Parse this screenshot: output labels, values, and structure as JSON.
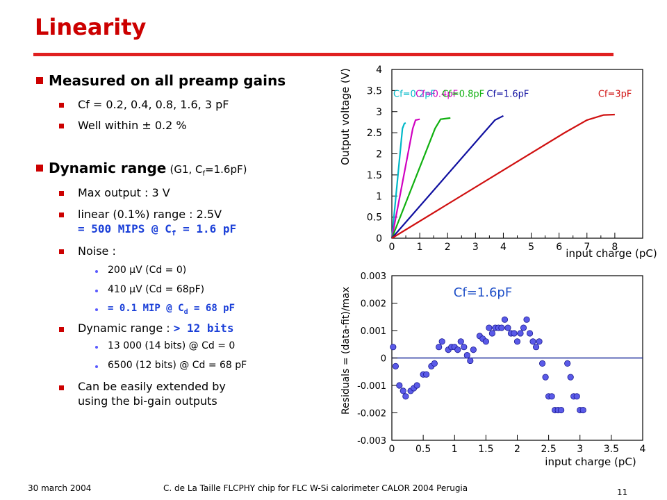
{
  "slide": {
    "title": "Linearity",
    "bullets": {
      "b1": "Measured on all preamp gains",
      "b1_1": "Cf = 0.2, 0.4, 0.8, 1.6, 3 pF",
      "b1_2": "Well within ± 0.2 %",
      "b2_main": "Dynamic range",
      "b2_note_pre": "(G1, C",
      "b2_note_sub": "f",
      "b2_note_post": "=1.6pF)",
      "b2_1": "Max output : 3 V",
      "b2_2": "linear (0.1%) range : 2.5V",
      "b2_2b_pre": "= 500 MIPS @ C",
      "b2_2b_sub": "f",
      "b2_2b_post": " = 1.6 pF",
      "b2_3": "Noise :",
      "n1": "200 µV  (Cd = 0)",
      "n2": "410 µV  (Cd = 68pF)",
      "n3_pre": "= 0.1 MIP @ C",
      "n3_sub": "d",
      "n3_post": " = 68 pF",
      "b2_4_pre": "Dynamic range :",
      "b2_4_hl": "> 12 bits",
      "d1": "13 000  (14 bits)  @ Cd = 0",
      "d2": "6500  (12 bits)   @ Cd = 68 pF",
      "b2_5a": "Can be easily extended by",
      "b2_5b": "using the bi-gain outputs"
    },
    "footer": {
      "date": "30 march 2004",
      "center": "C. de La Taille    FLCPHY chip for FLC W-Si calorimeter    CALOR 2004  Perugia",
      "page": "11"
    },
    "colors": {
      "title": "#cc0000",
      "highlight": "#1a3fd8",
      "bullet": "#cc0000"
    }
  },
  "chart_data": [
    {
      "type": "line",
      "xlabel": "input charge (pC)",
      "ylabel": "Output voltage (V)",
      "xlim": [
        0,
        9
      ],
      "ylim": [
        0,
        4
      ],
      "xticks": [
        "0",
        "1",
        "2",
        "3",
        "4",
        "5",
        "6",
        "7",
        "8"
      ],
      "yticks": [
        "0",
        "0.5",
        "1",
        "1.5",
        "2",
        "2.5",
        "3",
        "3.5",
        "4"
      ],
      "series": [
        {
          "name": "Cf=0.2pF",
          "color": "#00b8c8",
          "x": [
            0,
            0.38,
            0.45,
            0.5
          ],
          "y": [
            0,
            2.6,
            2.72,
            2.73
          ]
        },
        {
          "name": "Cf=0.4pF",
          "color": "#d000c0",
          "x": [
            0,
            0.75,
            0.85,
            1.0
          ],
          "y": [
            0,
            2.6,
            2.8,
            2.82
          ]
        },
        {
          "name": "Cf=0.8pF",
          "color": "#10b010",
          "x": [
            0,
            1.55,
            1.75,
            2.1
          ],
          "y": [
            0,
            2.6,
            2.82,
            2.85
          ]
        },
        {
          "name": "Cf=1.6pF",
          "color": "#1010a0",
          "x": [
            0,
            3.3,
            3.7,
            4.0
          ],
          "y": [
            0,
            2.5,
            2.8,
            2.9
          ]
        },
        {
          "name": "Cf=3pF",
          "color": "#d01010",
          "x": [
            0,
            6.2,
            7.0,
            7.6,
            8.0
          ],
          "y": [
            0,
            2.5,
            2.8,
            2.92,
            2.93
          ]
        }
      ]
    },
    {
      "type": "scatter",
      "title": "Cf=1.6pF",
      "xlabel": "input charge (pC)",
      "ylabel": "Residuals = (data-fit)/max",
      "xlim": [
        0,
        4
      ],
      "ylim": [
        -0.003,
        0.003
      ],
      "xticks": [
        "0",
        "0.5",
        "1",
        "1.5",
        "2",
        "2.5",
        "3",
        "3.5",
        "4"
      ],
      "yticks": [
        "-0.003",
        "-0.002",
        "-0.001",
        "0",
        "0.001",
        "0.002",
        "0.003"
      ],
      "color": "#3a3ad8",
      "x": [
        0.02,
        0.06,
        0.12,
        0.18,
        0.22,
        0.3,
        0.35,
        0.4,
        0.5,
        0.55,
        0.63,
        0.68,
        0.75,
        0.8,
        0.9,
        0.95,
        1.0,
        1.05,
        1.1,
        1.15,
        1.2,
        1.25,
        1.3,
        1.4,
        1.45,
        1.5,
        1.55,
        1.6,
        1.65,
        1.7,
        1.75,
        1.8,
        1.85,
        1.9,
        1.95,
        2.0,
        2.05,
        2.1,
        2.15,
        2.2,
        2.25,
        2.3,
        2.35,
        2.4,
        2.45,
        2.5,
        2.55,
        2.6,
        2.65,
        2.7,
        2.8,
        2.85,
        2.9,
        2.95,
        3.0,
        3.05
      ],
      "y": [
        0.0004,
        -0.0003,
        -0.001,
        -0.0012,
        -0.0014,
        -0.0012,
        -0.0011,
        -0.001,
        -0.0006,
        -0.0006,
        -0.0003,
        -0.0002,
        0.0004,
        0.0006,
        0.0003,
        0.0004,
        0.0004,
        0.0003,
        0.0006,
        0.0004,
        0.0001,
        -0.0001,
        0.0003,
        0.0008,
        0.0007,
        0.0006,
        0.0011,
        0.0009,
        0.0011,
        0.0011,
        0.0011,
        0.0014,
        0.0011,
        0.0009,
        0.0009,
        0.0006,
        0.0009,
        0.0011,
        0.0014,
        0.0009,
        0.0006,
        0.0004,
        0.0006,
        -0.0002,
        -0.0007,
        -0.0014,
        -0.0014,
        -0.0019,
        -0.0019,
        -0.0019,
        -0.0002,
        -0.0007,
        -0.0014,
        -0.0014,
        -0.0019,
        -0.0019
      ]
    }
  ]
}
